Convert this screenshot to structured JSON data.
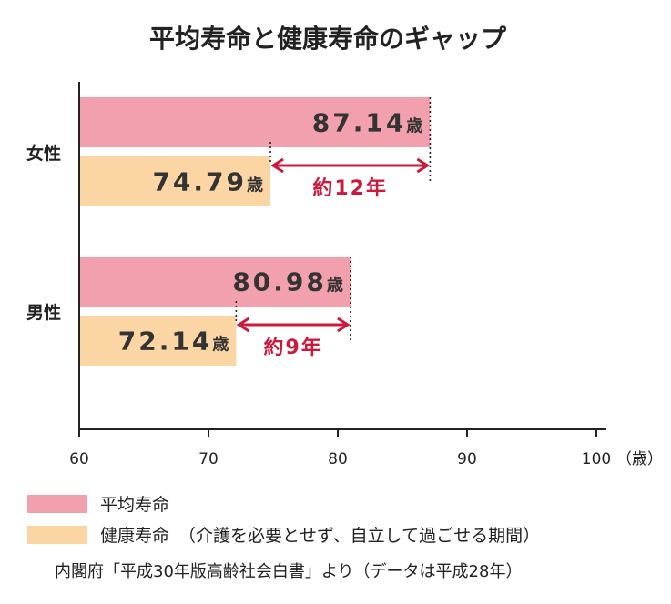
{
  "chart_data": {
    "type": "bar",
    "orientation": "horizontal",
    "title": "平均寿命と健康寿命のギャップ",
    "categories": [
      "女性",
      "男性"
    ],
    "series": [
      {
        "name": "平均寿命",
        "values": [
          87.14,
          80.98
        ],
        "color": "#f2a0ad"
      },
      {
        "name": "健康寿命",
        "values": [
          74.79,
          72.14
        ],
        "color": "#fcd5a4"
      }
    ],
    "value_labels": [
      [
        "87.14",
        "74.79"
      ],
      [
        "80.98",
        "72.14"
      ]
    ],
    "value_unit": "歳",
    "gaps": [
      {
        "category": "女性",
        "label": "約12年"
      },
      {
        "category": "男性",
        "label": "約9年"
      }
    ],
    "xlim": [
      60,
      100
    ],
    "xticks": [
      "60",
      "70",
      "80",
      "90",
      "100"
    ],
    "x_unit_label": "（歳）",
    "grid": false,
    "accent_color": "#cc1a3c"
  },
  "legend": {
    "items": [
      {
        "label": "平均寿命",
        "color": "#f2a0ad",
        "note": ""
      },
      {
        "label": "健康寿命",
        "color": "#fcd5a4",
        "note": "（介護を必要とせず、自立して過ごせる期間）"
      }
    ]
  },
  "source": "内閣府「平成30年版高齢社会白書」より（データは平成28年）"
}
